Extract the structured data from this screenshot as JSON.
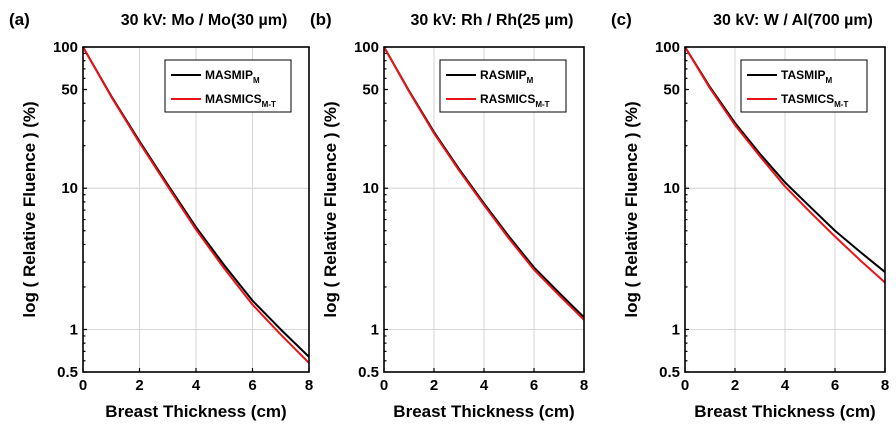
{
  "chart_data": [
    {
      "type": "line",
      "panel_label": "(a)",
      "title": "30 kV: Mo / Mo(30 µm)",
      "xlabel": "Breast Thickness (cm)",
      "ylabel": "log ( Relative Fluence ) (%)",
      "xlim": [
        0,
        8
      ],
      "ylim": [
        0.5,
        100
      ],
      "yscale": "log",
      "grid": true,
      "legend_position": "top-right",
      "x_ticks": [
        "0",
        "2",
        "4",
        "6",
        "8"
      ],
      "y_ticks": [
        "0.5",
        "1",
        "10",
        "50",
        "100"
      ],
      "x": [
        0,
        1,
        2,
        3,
        4,
        5,
        6,
        7,
        8
      ],
      "series": [
        {
          "name": "MASMIP",
          "subscript": "M",
          "color": "#000000",
          "values": [
            100,
            45,
            21.5,
            10.6,
            5.3,
            2.85,
            1.6,
            1.0,
            0.64
          ]
        },
        {
          "name": "MASMICS",
          "subscript": "M-T",
          "color": "#e8141a",
          "values": [
            100,
            44.5,
            21,
            10.3,
            5.1,
            2.7,
            1.5,
            0.92,
            0.58
          ]
        }
      ]
    },
    {
      "type": "line",
      "panel_label": "(b)",
      "title": "30 kV: Rh / Rh(25 µm)",
      "xlabel": "Breast Thickness (cm)",
      "ylabel": "log ( Relative Fluence ) (%)",
      "xlim": [
        0,
        8
      ],
      "ylim": [
        0.5,
        100
      ],
      "yscale": "log",
      "grid": true,
      "legend_position": "top-right",
      "x_ticks": [
        "0",
        "2",
        "4",
        "6",
        "8"
      ],
      "y_ticks": [
        "0.5",
        "1",
        "10",
        "50",
        "100"
      ],
      "x": [
        0,
        1,
        2,
        3,
        4,
        5,
        6,
        7,
        8
      ],
      "series": [
        {
          "name": "RASMIP",
          "subscript": "M",
          "color": "#000000",
          "values": [
            100,
            49,
            25,
            13.7,
            7.8,
            4.55,
            2.75,
            1.82,
            1.22
          ]
        },
        {
          "name": "RASMICS",
          "subscript": "M-T",
          "color": "#e8141a",
          "values": [
            100,
            48.5,
            24.5,
            13.4,
            7.6,
            4.4,
            2.65,
            1.75,
            1.17
          ]
        }
      ]
    },
    {
      "type": "line",
      "panel_label": "(c)",
      "title": "30 kV: W / Al(700 µm)",
      "xlabel": "Breast Thickness (cm)",
      "ylabel": "log ( Relative Fluence ) (%)",
      "xlim": [
        0,
        8
      ],
      "ylim": [
        0.5,
        100
      ],
      "yscale": "log",
      "grid": true,
      "legend_position": "top-right",
      "x_ticks": [
        "0",
        "2",
        "4",
        "6",
        "8"
      ],
      "y_ticks": [
        "0.5",
        "1",
        "10",
        "50",
        "100"
      ],
      "x": [
        0,
        1,
        2,
        3,
        4,
        5,
        6,
        7,
        8
      ],
      "series": [
        {
          "name": "TASMIP",
          "subscript": "M",
          "color": "#000000",
          "values": [
            100,
            52,
            29,
            17.5,
            11,
            7.4,
            5,
            3.55,
            2.55
          ]
        },
        {
          "name": "TASMICS",
          "subscript": "M-T",
          "color": "#e8141a",
          "values": [
            100,
            51,
            28,
            16.8,
            10.3,
            6.8,
            4.55,
            3.1,
            2.15
          ]
        }
      ]
    }
  ]
}
